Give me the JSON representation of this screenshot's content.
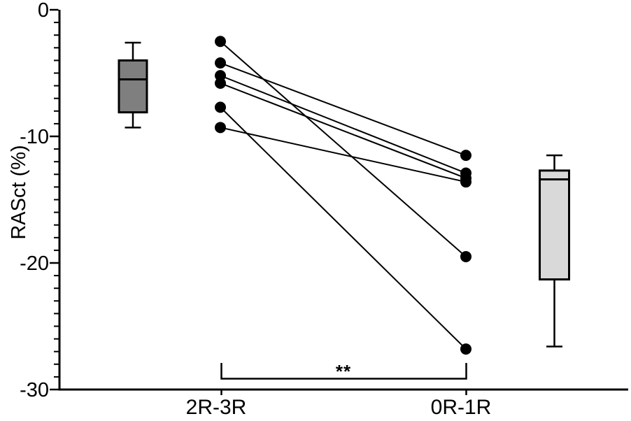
{
  "chart_data": {
    "type": "scatter",
    "subtype": "paired-lines-with-boxplots",
    "title": "",
    "xlabel": "",
    "ylabel": "RASct (%)",
    "ylim": [
      -30,
      0
    ],
    "y_major_ticks": [
      0,
      -10,
      -20,
      -30
    ],
    "y_tick_labels": [
      "0",
      "-10",
      "-20",
      "-30"
    ],
    "y_minor_tick_step": 1,
    "grid": false,
    "legend": "none",
    "categories": [
      "2R-3R",
      "0R-1R"
    ],
    "pairs": [
      {
        "name": "pair-1",
        "values": [
          -2.5,
          -19.5
        ]
      },
      {
        "name": "pair-2",
        "values": [
          -4.2,
          -11.5
        ]
      },
      {
        "name": "pair-3",
        "values": [
          -5.2,
          -12.9
        ]
      },
      {
        "name": "pair-4",
        "values": [
          -5.8,
          -13.3
        ]
      },
      {
        "name": "pair-5",
        "values": [
          -7.7,
          -26.8
        ]
      },
      {
        "name": "pair-6",
        "values": [
          -9.3,
          -13.6
        ]
      }
    ],
    "boxplots": [
      {
        "category": "2R-3R",
        "whisker_high": -2.6,
        "q3": -4.0,
        "median": -5.5,
        "q1": -8.1,
        "whisker_low": -9.3,
        "fill": "#7f7f7f"
      },
      {
        "category": "0R-1R",
        "whisker_high": -11.5,
        "q3": -12.7,
        "median": -13.4,
        "q1": -21.3,
        "whisker_low": -26.6,
        "fill": "#d9d9d9"
      }
    ],
    "significance": {
      "label": "**",
      "between": [
        "2R-3R",
        "0R-1R"
      ]
    },
    "colors": {
      "marker": "#000000",
      "line": "#000000",
      "axis": "#000000",
      "background": "#ffffff",
      "box_left_fill": "#7f7f7f",
      "box_right_fill": "#d9d9d9"
    }
  }
}
